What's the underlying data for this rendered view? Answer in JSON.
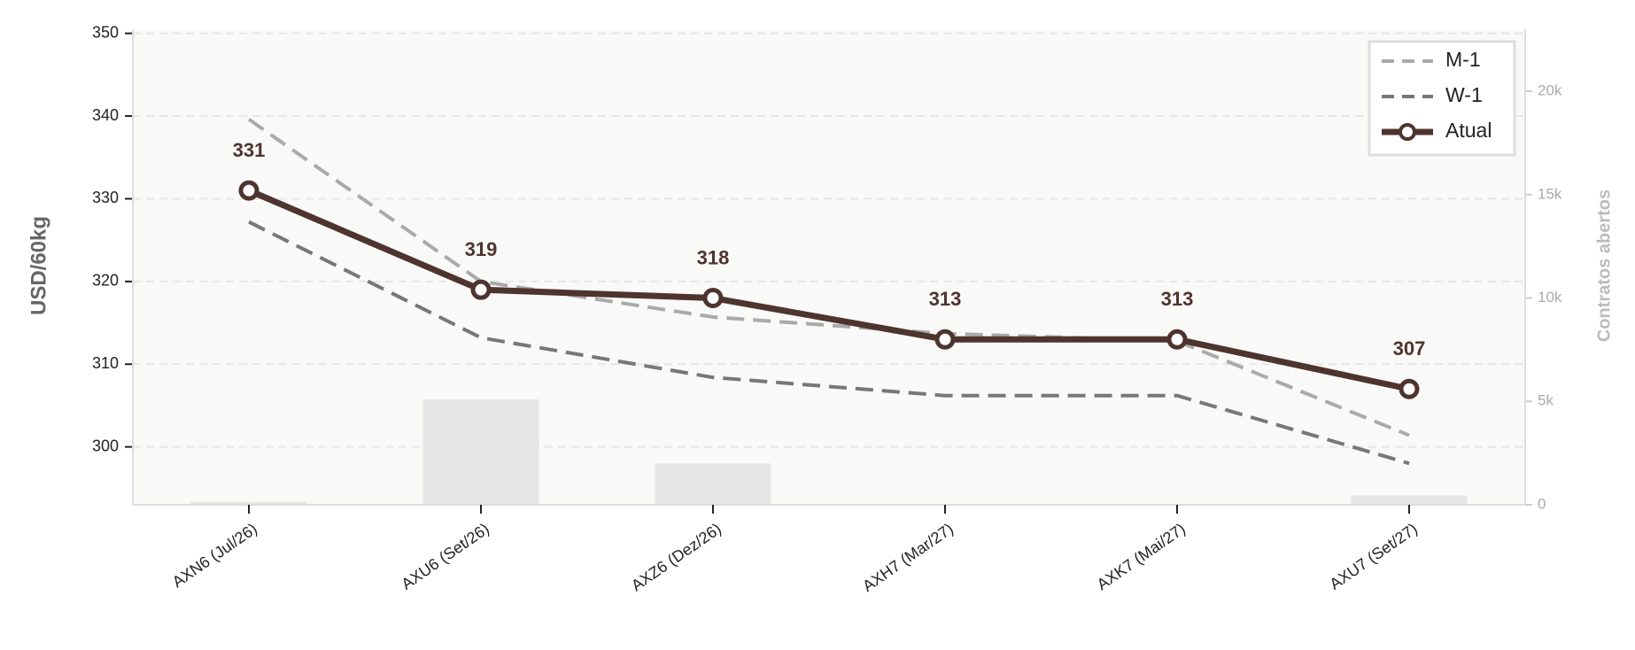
{
  "chart_data": {
    "type": "line",
    "categories": [
      "AXN6 (Jul/26)",
      "AXU6 (Set/26)",
      "AXZ6 (Dez/26)",
      "AXH7 (Mar/27)",
      "AXK7 (Mai/27)",
      "AXU7 (Set/27)"
    ],
    "ylabel": "USD/60kg",
    "y2label": "Contratos abertos",
    "ylim": [
      293,
      350.5
    ],
    "yticks": [
      300,
      310,
      320,
      330,
      340,
      350
    ],
    "y2lim": [
      0,
      23000
    ],
    "y2ticks": [
      0,
      {
        "value": 5000,
        "label": "5k"
      },
      {
        "value": 10000,
        "label": "10k"
      },
      {
        "value": 15000,
        "label": "15k"
      },
      {
        "value": 20000,
        "label": "20k"
      }
    ],
    "grid": true,
    "legend": "upper right",
    "bars": {
      "axis": "y2",
      "color": "#e6e6e6",
      "values": [
        150,
        5100,
        2000,
        0,
        0,
        450
      ]
    },
    "series": [
      {
        "name": "M-1",
        "color": "#aaaaaa",
        "dash": true,
        "values": [
          339.6,
          320,
          315.7,
          313.7,
          312.8,
          301.4
        ]
      },
      {
        "name": "W-1",
        "color": "#777777",
        "dash": true,
        "values": [
          327.2,
          313.2,
          308.4,
          306.2,
          306.2,
          298
        ]
      },
      {
        "name": "Atual",
        "color": "#4e342e",
        "dash": false,
        "markers": true,
        "values": [
          331,
          319,
          318,
          313,
          313,
          307
        ]
      }
    ]
  }
}
